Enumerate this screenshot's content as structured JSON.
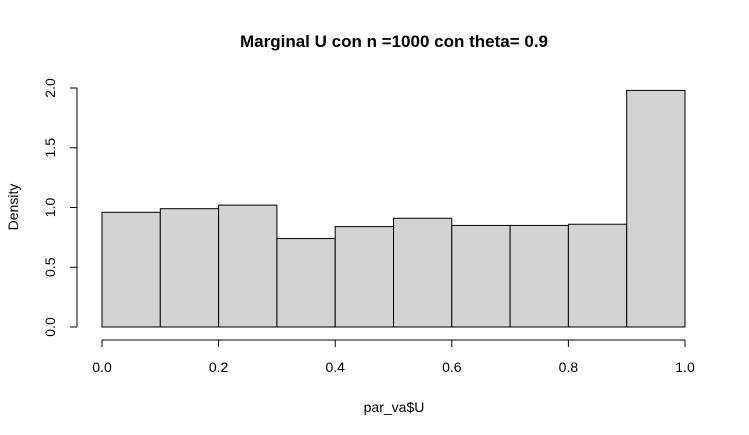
{
  "chart_data": {
    "type": "bar",
    "title": "Marginal U con n =1000 con theta= 0.9",
    "xlabel": "par_va$U",
    "ylabel": "Density",
    "bins": [
      {
        "start": 0.0,
        "end": 0.1,
        "density": 0.96
      },
      {
        "start": 0.1,
        "end": 0.2,
        "density": 0.99
      },
      {
        "start": 0.2,
        "end": 0.3,
        "density": 1.02
      },
      {
        "start": 0.3,
        "end": 0.4,
        "density": 0.74
      },
      {
        "start": 0.4,
        "end": 0.5,
        "density": 0.84
      },
      {
        "start": 0.5,
        "end": 0.6,
        "density": 0.91
      },
      {
        "start": 0.6,
        "end": 0.7,
        "density": 0.85
      },
      {
        "start": 0.7,
        "end": 0.8,
        "density": 0.85
      },
      {
        "start": 0.8,
        "end": 0.9,
        "density": 0.86
      },
      {
        "start": 0.9,
        "end": 1.0,
        "density": 1.98
      }
    ],
    "xlim": [
      0,
      1
    ],
    "ylim": [
      0,
      2
    ],
    "x_ticks": [
      0.0,
      0.2,
      0.4,
      0.6,
      0.8,
      1.0
    ],
    "x_tick_labels": [
      "0.0",
      "0.2",
      "0.4",
      "0.6",
      "0.8",
      "1.0"
    ],
    "y_ticks": [
      0.0,
      0.5,
      1.0,
      1.5,
      2.0
    ],
    "y_tick_labels": [
      "0.0",
      "0.5",
      "1.0",
      "1.5",
      "2.0"
    ],
    "bar_fill": "#d3d3d3",
    "bar_stroke": "#000000",
    "grid": false,
    "legend": "none"
  }
}
